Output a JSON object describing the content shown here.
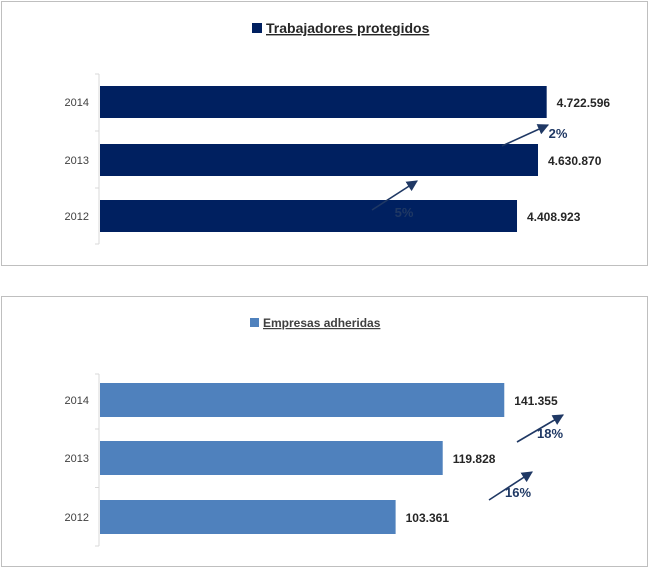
{
  "chart_data": [
    {
      "type": "bar",
      "orientation": "horizontal",
      "categories": [
        "2014",
        "2013",
        "2012"
      ],
      "series": [
        {
          "name": "Trabajadores protegidos",
          "values": [
            4722596,
            4630870,
            4408923
          ],
          "color": "#002060"
        }
      ],
      "value_labels": [
        "4.722.596",
        "4.630.870",
        "4.408.923"
      ],
      "growth_annotations": [
        "2%",
        "5%"
      ],
      "xlim": [
        0,
        4800000
      ],
      "legend": "top",
      "grid": false
    },
    {
      "type": "bar",
      "orientation": "horizontal",
      "categories": [
        "2014",
        "2013",
        "2012"
      ],
      "series": [
        {
          "name": "Empresas adheridas",
          "values": [
            141355,
            119828,
            103361
          ],
          "color": "#4f81bd"
        }
      ],
      "value_labels": [
        "141.355",
        "119.828",
        "103.361"
      ],
      "growth_annotations": [
        "18%",
        "16%"
      ],
      "xlim": [
        0,
        150000
      ],
      "legend": "top",
      "grid": false
    }
  ],
  "arrow_color": "#1f3864"
}
